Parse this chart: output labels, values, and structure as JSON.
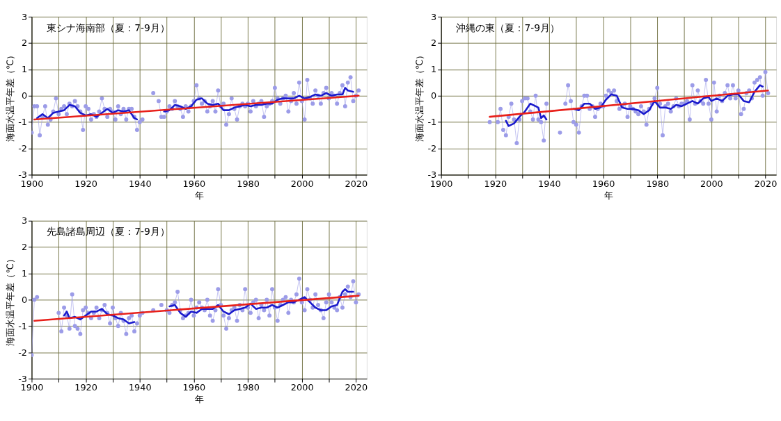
{
  "chart_data": [
    {
      "type": "line",
      "title": "東シナ海南部（夏：7-9月）",
      "xlabel": "年",
      "ylabel": "海面水温平年差（℃）",
      "xlim": [
        1900,
        2024
      ],
      "xticks": [
        1900,
        {
          "value": 1910,
          "label": null
        },
        1920,
        {
          "value": 1930,
          "label": null
        },
        1940,
        {
          "value": 1950,
          "label": null
        },
        1960,
        {
          "value": 1970,
          "label": null
        },
        1980,
        {
          "value": 1990,
          "label": null
        },
        2000,
        {
          "value": 2010,
          "label": null
        },
        2020
      ],
      "ylim": [
        -3,
        3
      ],
      "yticks": [
        -3,
        -2,
        -1,
        0,
        1,
        2,
        3
      ],
      "grid": true,
      "series": [
        {
          "color": "#9c9ce8",
          "marker": "circle",
          "x": [
            1900,
            1901,
            1902,
            1903,
            1904,
            1905,
            1906,
            1907,
            1908,
            1909,
            1910,
            1911,
            1912,
            1913,
            1914,
            1915,
            1916,
            1917,
            1918,
            1919,
            1920,
            1921,
            1922,
            1923,
            1924,
            1925,
            1926,
            1927,
            1928,
            1929,
            1930,
            1931,
            1932,
            1933,
            1934,
            1935,
            1936,
            1937,
            1938,
            1939,
            1940,
            1941,
            1942,
            1943,
            1944,
            1945,
            1946,
            1947,
            1948,
            1949,
            1950,
            1951,
            1952,
            1953,
            1954,
            1955,
            1956,
            1957,
            1958,
            1959,
            1960,
            1961,
            1962,
            1963,
            1964,
            1965,
            1966,
            1967,
            1968,
            1969,
            1970,
            1971,
            1972,
            1973,
            1974,
            1975,
            1976,
            1977,
            1978,
            1979,
            1980,
            1981,
            1982,
            1983,
            1984,
            1985,
            1986,
            1987,
            1988,
            1989,
            1990,
            1991,
            1992,
            1993,
            1994,
            1995,
            1996,
            1997,
            1998,
            1999,
            2000,
            2001,
            2002,
            2003,
            2004,
            2005,
            2006,
            2007,
            2008,
            2009,
            2010,
            2011,
            2012,
            2013,
            2014,
            2015,
            2016,
            2017,
            2018,
            2019,
            2020,
            2021
          ],
          "values": [
            -1.4,
            -0.4,
            -0.4,
            -1.5,
            -0.8,
            -0.4,
            -1.1,
            -0.9,
            -0.6,
            -0.1,
            -0.7,
            -0.5,
            -0.4,
            -0.7,
            -0.3,
            -0.4,
            -0.2,
            -0.4,
            -0.6,
            -1.3,
            -0.4,
            -0.5,
            -0.9,
            -0.7,
            -0.8,
            -0.6,
            -0.1,
            -0.5,
            -0.8,
            -0.5,
            -0.6,
            -0.9,
            -0.4,
            -0.7,
            -0.5,
            -0.9,
            -0.5,
            -0.5,
            -0.8,
            -1.3,
            -1.0,
            -0.9,
            null,
            null,
            null,
            0.1,
            null,
            -0.2,
            -0.8,
            -0.8,
            -0.6,
            -0.4,
            -0.5,
            -0.2,
            -0.4,
            -0.5,
            -0.8,
            -0.4,
            -0.6,
            -0.4,
            -0.2,
            0.4,
            -0.1,
            -0.3,
            -0.2,
            -0.6,
            -0.4,
            -0.2,
            -0.6,
            0.2,
            -0.4,
            -0.3,
            -1.1,
            -0.7,
            -0.1,
            -0.5,
            -0.9,
            -0.4,
            -0.3,
            -0.4,
            -0.3,
            -0.6,
            -0.2,
            -0.4,
            -0.3,
            -0.2,
            -0.8,
            -0.4,
            -0.3,
            -0.2,
            0.3,
            -0.1,
            -0.3,
            -0.1,
            0.0,
            -0.6,
            -0.2,
            0.1,
            -0.3,
            0.5,
            -0.2,
            -0.9,
            0.6,
            -0.1,
            -0.3,
            0.2,
            0.0,
            -0.3,
            0.1,
            0.3,
            -0.1,
            0.1,
            0.0,
            -0.3,
            0.1,
            0.4,
            -0.4,
            0.5,
            0.7,
            -0.2,
            0.0,
            0.2
          ]
        },
        {
          "color": "#1a1acc",
          "x": [
            1902,
            1904,
            1906,
            1908,
            1910,
            1912,
            1914,
            1916,
            1918,
            1920,
            1922,
            1924,
            1926,
            1928,
            1930,
            1932,
            1934,
            1936,
            1938,
            1939,
            1944,
            1949,
            1951,
            1953,
            1955,
            1957,
            1959,
            1961,
            1963,
            1965,
            1967,
            1969,
            1971,
            1973,
            1975,
            1977,
            1979,
            1981,
            1983,
            1985,
            1987,
            1989,
            1991,
            1993,
            1995,
            1997,
            1999,
            2001,
            2003,
            2005,
            2007,
            2009,
            2011,
            2013,
            2015,
            2016,
            2017,
            2019
          ],
          "values": [
            -0.85,
            -0.7,
            -0.85,
            -0.65,
            -0.6,
            -0.55,
            -0.35,
            -0.4,
            -0.65,
            -0.75,
            -0.7,
            -0.8,
            -0.65,
            -0.5,
            -0.65,
            -0.55,
            -0.6,
            -0.55,
            -0.85,
            -0.9,
            null,
            -0.6,
            -0.55,
            -0.35,
            -0.4,
            -0.5,
            -0.4,
            -0.15,
            -0.1,
            -0.3,
            -0.35,
            -0.3,
            -0.55,
            -0.55,
            -0.45,
            -0.4,
            -0.35,
            -0.4,
            -0.35,
            -0.35,
            -0.3,
            -0.3,
            -0.15,
            -0.1,
            -0.1,
            -0.1,
            0.0,
            -0.1,
            -0.05,
            0.05,
            0.0,
            0.1,
            0.0,
            0.05,
            0.05,
            0.3,
            0.2,
            0.15
          ]
        },
        {
          "color": "#e8201a",
          "x": [
            1901,
            2021
          ],
          "values": [
            -0.9,
            0.0
          ]
        }
      ]
    },
    {
      "type": "line",
      "title": "沖縄の東（夏：7-9月）",
      "xlabel": "年",
      "ylabel": "海面水温平年差（℃）",
      "xlim": [
        1900,
        2024
      ],
      "xticks": [
        1900,
        {
          "value": 1910,
          "label": null
        },
        1920,
        {
          "value": 1930,
          "label": null
        },
        1940,
        {
          "value": 1950,
          "label": null
        },
        1960,
        {
          "value": 1970,
          "label": null
        },
        1980,
        {
          "value": 1990,
          "label": null
        },
        2000,
        {
          "value": 2010,
          "label": null
        },
        2020
      ],
      "ylim": [
        -3,
        3
      ],
      "yticks": [
        -3,
        -2,
        -1,
        0,
        1,
        2,
        3
      ],
      "grid": true,
      "series": [
        {
          "color": "#9c9ce8",
          "marker": "circle",
          "x": [
            1918,
            1919,
            1920,
            1921,
            1922,
            1923,
            1924,
            1925,
            1926,
            1927,
            1928,
            1929,
            1930,
            1931,
            1932,
            1933,
            1934,
            1935,
            1936,
            1937,
            1938,
            1939,
            1940,
            1941,
            1942,
            1943,
            1944,
            1945,
            1946,
            1947,
            1948,
            1949,
            1950,
            1951,
            1952,
            1953,
            1954,
            1955,
            1956,
            1957,
            1958,
            1959,
            1960,
            1961,
            1962,
            1963,
            1964,
            1965,
            1966,
            1967,
            1968,
            1969,
            1970,
            1971,
            1972,
            1973,
            1974,
            1975,
            1976,
            1977,
            1978,
            1979,
            1980,
            1981,
            1982,
            1983,
            1984,
            1985,
            1986,
            1987,
            1988,
            1989,
            1990,
            1991,
            1992,
            1993,
            1994,
            1995,
            1996,
            1997,
            1998,
            1999,
            2000,
            2001,
            2002,
            2003,
            2004,
            2005,
            2006,
            2007,
            2008,
            2009,
            2010,
            2011,
            2012,
            2013,
            2014,
            2015,
            2016,
            2017,
            2018,
            2019,
            2020,
            2021
          ],
          "values": [
            -1.0,
            null,
            null,
            -1.0,
            -0.5,
            -1.3,
            -1.5,
            -0.8,
            -0.3,
            -0.9,
            -1.8,
            -0.9,
            -0.2,
            -0.1,
            -0.1,
            -0.6,
            -0.9,
            0.0,
            -0.9,
            -1.0,
            -1.7,
            -0.3,
            null,
            null,
            null,
            null,
            -1.4,
            null,
            -0.3,
            0.4,
            -0.2,
            -1.0,
            -1.1,
            -1.4,
            -0.4,
            0.0,
            0.0,
            -0.5,
            -0.4,
            -0.8,
            -0.5,
            -0.3,
            -0.4,
            0.0,
            0.2,
            0.1,
            0.2,
            -0.2,
            -0.5,
            -0.4,
            -0.3,
            -0.8,
            -0.4,
            -0.5,
            -0.6,
            -0.7,
            -0.4,
            -0.6,
            -1.1,
            -0.5,
            -0.3,
            -0.1,
            0.3,
            -0.3,
            -1.5,
            -0.4,
            -0.3,
            -0.6,
            -0.4,
            -0.1,
            -0.4,
            -0.3,
            -0.3,
            -0.2,
            -0.9,
            0.4,
            -0.3,
            0.2,
            -0.2,
            -0.3,
            0.6,
            -0.3,
            -0.9,
            0.5,
            -0.6,
            0.0,
            -0.2,
            0.1,
            0.4,
            -0.1,
            0.4,
            -0.1,
            0.2,
            -0.7,
            -0.5,
            0.1,
            0.2,
            -0.1,
            0.5,
            0.6,
            0.7,
            0.0,
            0.9,
            0.1
          ]
        },
        {
          "color": "#1a1acc",
          "x": [
            1924,
            1925,
            1927,
            1929,
            1931,
            1933,
            1935,
            1936,
            1937,
            1938,
            1939,
            1944,
            1949,
            1951,
            1953,
            1955,
            1957,
            1959,
            1961,
            1963,
            1965,
            1967,
            1969,
            1971,
            1973,
            1975,
            1977,
            1979,
            1981,
            1983,
            1985,
            1987,
            1989,
            1991,
            1993,
            1995,
            1997,
            1999,
            2000,
            2002,
            2004,
            2006,
            2008,
            2010,
            2012,
            2014,
            2016,
            2018,
            2019
          ],
          "values": [
            -0.95,
            -1.15,
            -1.05,
            -0.8,
            -0.6,
            -0.3,
            -0.4,
            -0.45,
            -0.85,
            -0.75,
            -0.9,
            null,
            -0.5,
            -0.55,
            -0.3,
            -0.3,
            -0.5,
            -0.45,
            -0.15,
            0.05,
            0.0,
            -0.45,
            -0.5,
            -0.5,
            -0.55,
            -0.7,
            -0.55,
            -0.2,
            -0.45,
            -0.45,
            -0.5,
            -0.35,
            -0.4,
            -0.3,
            -0.2,
            -0.3,
            -0.1,
            -0.05,
            -0.2,
            -0.1,
            -0.2,
            0.0,
            0.05,
            0.05,
            -0.2,
            -0.25,
            0.15,
            0.4,
            0.35
          ]
        },
        {
          "color": "#e8201a",
          "x": [
            1918,
            2021
          ],
          "values": [
            -0.8,
            0.2
          ]
        }
      ]
    },
    {
      "type": "line",
      "title": "先島諸島周辺（夏：7-9月）",
      "xlabel": "年",
      "ylabel": "海面水温平年差（℃）",
      "xlim": [
        1900,
        2024
      ],
      "xticks": [
        1900,
        {
          "value": 1910,
          "label": null
        },
        1920,
        {
          "value": 1930,
          "label": null
        },
        1940,
        {
          "value": 1950,
          "label": null
        },
        1960,
        {
          "value": 1970,
          "label": null
        },
        1980,
        {
          "value": 1990,
          "label": null
        },
        2000,
        {
          "value": 2010,
          "label": null
        },
        2020
      ],
      "ylim": [
        -3,
        3
      ],
      "yticks": [
        -3,
        -2,
        -1,
        0,
        1,
        2,
        3
      ],
      "grid": true,
      "series": [
        {
          "color": "#9c9ce8",
          "marker": "circle",
          "x": [
            1900,
            1901,
            1902,
            1903,
            1904,
            1905,
            1906,
            1907,
            1908,
            1909,
            1910,
            1911,
            1912,
            1913,
            1914,
            1915,
            1916,
            1917,
            1918,
            1919,
            1920,
            1921,
            1922,
            1923,
            1924,
            1925,
            1926,
            1927,
            1928,
            1929,
            1930,
            1931,
            1932,
            1933,
            1934,
            1935,
            1936,
            1937,
            1938,
            1939,
            1940,
            1941,
            1942,
            1943,
            1944,
            1945,
            1946,
            1947,
            1948,
            1949,
            1950,
            1951,
            1952,
            1953,
            1954,
            1955,
            1956,
            1957,
            1958,
            1959,
            1960,
            1961,
            1962,
            1963,
            1964,
            1965,
            1966,
            1967,
            1968,
            1969,
            1970,
            1971,
            1972,
            1973,
            1974,
            1975,
            1976,
            1977,
            1978,
            1979,
            1980,
            1981,
            1982,
            1983,
            1984,
            1985,
            1986,
            1987,
            1988,
            1989,
            1990,
            1991,
            1992,
            1993,
            1994,
            1995,
            1996,
            1997,
            1998,
            1999,
            2000,
            2001,
            2002,
            2003,
            2004,
            2005,
            2006,
            2007,
            2008,
            2009,
            2010,
            2011,
            2012,
            2013,
            2014,
            2015,
            2016,
            2017,
            2018,
            2019,
            2020,
            2021
          ],
          "values": [
            -2.1,
            0.0,
            0.1,
            null,
            null,
            null,
            null,
            null,
            null,
            null,
            -0.5,
            -1.2,
            -0.3,
            -0.6,
            -1.1,
            0.2,
            -1.0,
            -1.1,
            -1.3,
            -0.4,
            -0.3,
            -0.5,
            -0.7,
            -0.5,
            -0.3,
            -0.7,
            -0.4,
            -0.2,
            -0.5,
            -0.9,
            -0.3,
            -0.7,
            -1.0,
            -0.5,
            -0.8,
            -1.3,
            -0.7,
            -0.6,
            -1.2,
            -0.9,
            -0.6,
            -0.5,
            null,
            null,
            null,
            -0.4,
            null,
            null,
            -0.2,
            null,
            -0.4,
            -0.5,
            -0.2,
            -0.1,
            0.3,
            -0.4,
            -0.7,
            -0.6,
            -0.5,
            0.0,
            -0.6,
            -0.3,
            -0.1,
            -0.3,
            -0.4,
            0.0,
            -0.6,
            -0.8,
            -0.4,
            0.4,
            -0.2,
            -0.6,
            -1.1,
            -0.7,
            -0.4,
            -0.3,
            -0.8,
            -0.2,
            -0.4,
            0.4,
            -0.3,
            -0.5,
            -0.1,
            0.0,
            -0.7,
            -0.2,
            -0.4,
            0.0,
            -0.6,
            0.4,
            -0.3,
            -0.8,
            -0.2,
            0.0,
            0.1,
            -0.5,
            0.0,
            -0.1,
            0.2,
            0.8,
            -0.1,
            -0.4,
            0.4,
            0.0,
            -0.3,
            0.2,
            -0.2,
            -0.4,
            -0.7,
            -0.1,
            0.2,
            -0.1,
            -0.3,
            -0.4,
            0.1,
            -0.3,
            0.2,
            0.5,
            0.1,
            0.7,
            -0.1,
            0.2
          ]
        },
        {
          "color": "#1a1acc",
          "x": [
            1912,
            1913,
            1914,
            1916,
            1918,
            1920,
            1922,
            1924,
            1926,
            1928,
            1930,
            1932,
            1934,
            1936,
            1938,
            1944,
            1951,
            1953,
            1955,
            1957,
            1959,
            1961,
            1963,
            1965,
            1967,
            1969,
            1971,
            1973,
            1975,
            1977,
            1979,
            1981,
            1983,
            1985,
            1987,
            1989,
            1991,
            1993,
            1995,
            1997,
            1999,
            2001,
            2003,
            2005,
            2007,
            2009,
            2011,
            2013,
            2015,
            2016,
            2017,
            2019
          ],
          "values": [
            -0.6,
            -0.45,
            -0.7,
            -0.65,
            -0.75,
            -0.6,
            -0.45,
            -0.45,
            -0.35,
            -0.55,
            -0.6,
            -0.7,
            -0.75,
            -0.9,
            -0.85,
            null,
            -0.25,
            -0.2,
            -0.5,
            -0.65,
            -0.45,
            -0.5,
            -0.35,
            -0.35,
            -0.35,
            -0.2,
            -0.45,
            -0.55,
            -0.4,
            -0.35,
            -0.3,
            -0.15,
            -0.35,
            -0.3,
            -0.3,
            -0.2,
            -0.3,
            -0.2,
            -0.1,
            -0.1,
            0.0,
            0.1,
            -0.1,
            -0.3,
            -0.4,
            -0.4,
            -0.25,
            -0.2,
            0.3,
            0.4,
            0.3,
            0.3
          ]
        },
        {
          "color": "#e8201a",
          "x": [
            1901,
            2021
          ],
          "values": [
            -0.8,
            0.15
          ]
        }
      ]
    }
  ]
}
